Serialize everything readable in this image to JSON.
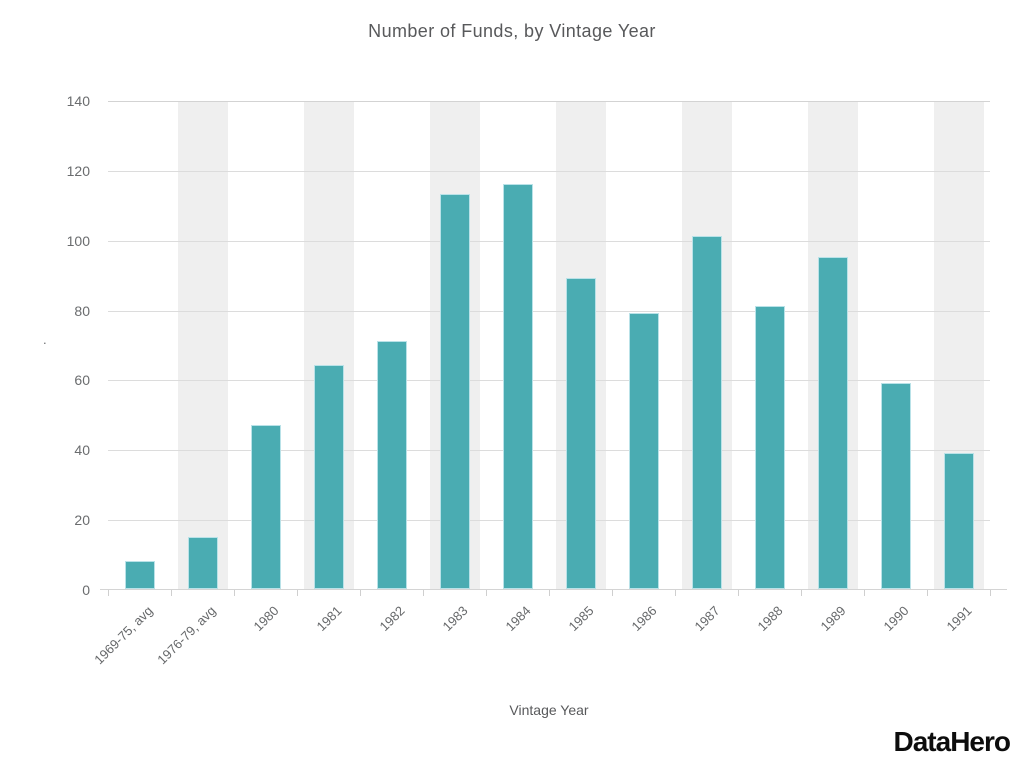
{
  "chart_data": {
    "type": "bar",
    "title": "Number of Funds, by Vintage Year",
    "xlabel": "Vintage Year",
    "ylabel": ".",
    "categories": [
      "1969-75, avg",
      "1976-79, avg",
      "1980",
      "1981",
      "1982",
      "1983",
      "1984",
      "1985",
      "1986",
      "1987",
      "1988",
      "1989",
      "1990",
      "1991"
    ],
    "values": [
      8,
      15,
      47,
      64,
      71,
      113,
      116,
      89,
      79,
      101,
      81,
      95,
      59,
      39
    ],
    "y_ticks": [
      0,
      20,
      40,
      60,
      80,
      100,
      120,
      140
    ],
    "ylim": [
      0,
      140
    ],
    "grid": "horizontal-only",
    "legend_position": "none",
    "background_style": "alternating vertical stripes behind even columns",
    "bar_color": "#4aacb2",
    "bar_border_color": "#b9e2e8",
    "stripe_color": "#efefef",
    "gridline_color": "#dcdcdc",
    "axis_line_color": "#d4d4d4",
    "title_color": "#58595b",
    "tick_label_color": "#6a6c6e"
  },
  "branding": {
    "logo_text": "DataHero"
  }
}
